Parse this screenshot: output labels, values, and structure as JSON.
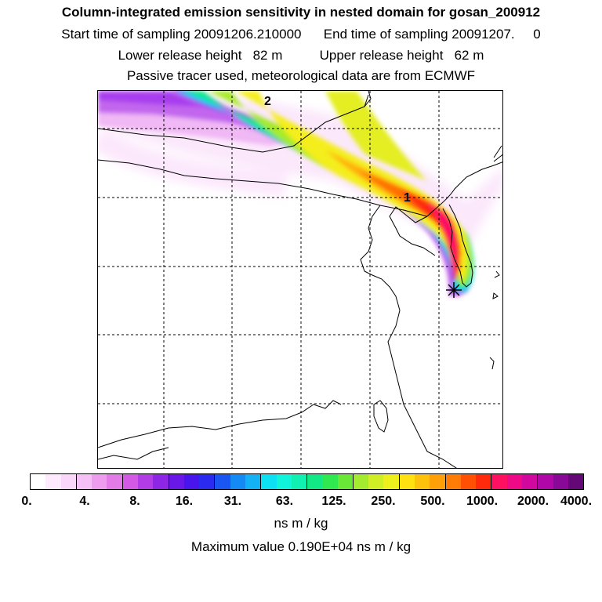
{
  "header": {
    "title": "Column-integrated emission sensitivity in nested domain for gosan_200912",
    "times": "Start time of sampling 20091206.210000      End time of sampling 20091207.     0",
    "heights": "Lower release height   82 m          Upper release height   62 m",
    "tracer": "Passive tracer used, meteorological data are from ECMWF"
  },
  "map": {
    "markers": [
      {
        "label": "2"
      },
      {
        "label": "1"
      }
    ],
    "station_symbol": "star-marker"
  },
  "colorbar": {
    "ticks": [
      "0.",
      "4.",
      "8.",
      "16.",
      "31.",
      "63.",
      "125.",
      "250.",
      "500.",
      "1000.",
      "2000.",
      "4000."
    ],
    "unit": "ns m / kg",
    "colors": [
      "#ffffff",
      "#fdeafd",
      "#fad6fa",
      "#f5c0f5",
      "#ee9cee",
      "#e27ae8",
      "#d45ae6",
      "#b23ce6",
      "#8e26e6",
      "#6a18e8",
      "#4a14ec",
      "#2a2af0",
      "#1a56f2",
      "#148af4",
      "#12b2f4",
      "#0ee0f4",
      "#10f4dc",
      "#10f0b0",
      "#12e886",
      "#30e850",
      "#6ae838",
      "#a4ea2e",
      "#d0ee26",
      "#eef01e",
      "#ffe010",
      "#ffc20c",
      "#ffa008",
      "#ff7c06",
      "#ff5004",
      "#ff2a0c",
      "#ff1060",
      "#ee0a86",
      "#d0089e",
      "#b008a8",
      "#8a0898",
      "#640878"
    ]
  },
  "max_value_text": "Maximum value  0.190E+04 ns m / kg"
}
